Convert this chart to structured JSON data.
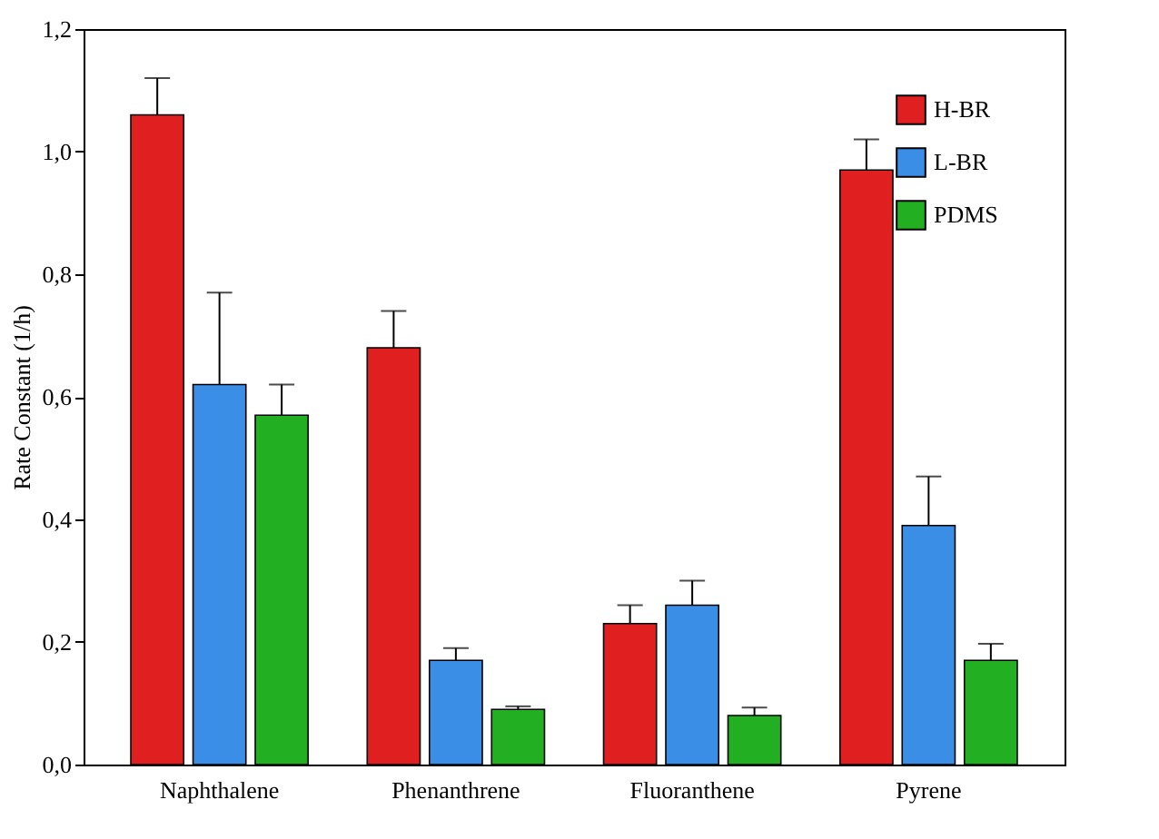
{
  "chart_data": {
    "type": "bar",
    "ylabel": "Rate Constant (1/h)",
    "categories": [
      "Naphthalene",
      "Phenanthrene",
      "Fluoranthene",
      "Pyrene"
    ],
    "series": [
      {
        "name": "H-BR",
        "color": "#e02020",
        "values": [
          1.06,
          0.68,
          0.23,
          0.97
        ],
        "errors": [
          [
            1.06,
            1.12
          ],
          [
            0.68,
            0.74
          ],
          [
            0.23,
            0.26
          ],
          [
            0.97,
            1.02
          ]
        ]
      },
      {
        "name": "L-BR",
        "color": "#3a8ee6",
        "values": [
          0.62,
          0.17,
          0.26,
          0.39
        ],
        "errors": [
          [
            0.62,
            0.77
          ],
          [
            0.17,
            0.19
          ],
          [
            0.26,
            0.3
          ],
          [
            0.39,
            0.47
          ]
        ]
      },
      {
        "name": "PDMS",
        "color": "#22b022",
        "values": [
          0.57,
          0.09,
          0.08,
          0.17
        ],
        "errors": [
          [
            0.57,
            0.62
          ],
          [
            0.09,
            0.095
          ],
          [
            0.08,
            0.093
          ],
          [
            0.17,
            0.197
          ]
        ]
      }
    ],
    "ylim": [
      0,
      1.2
    ],
    "yticks": [
      {
        "value": 0,
        "label": "0,0"
      },
      {
        "value": 0.2,
        "label": "0,2"
      },
      {
        "value": 0.4,
        "label": "0,4"
      },
      {
        "value": 0.6,
        "label": "0,6"
      },
      {
        "value": 0.8,
        "label": "0,8"
      },
      {
        "value": 1.0,
        "label": "1,0"
      },
      {
        "value": 1.2,
        "label": "1,2"
      }
    ],
    "legend": "top right",
    "grid": false
  }
}
